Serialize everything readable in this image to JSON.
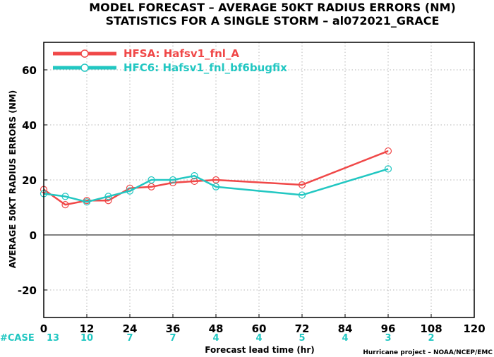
{
  "chart_data": {
    "type": "line",
    "title": "MODEL FORECAST – AVERAGE 50KT RADIUS ERRORS (NM)",
    "subtitle": "STATISTICS FOR A SINGLE STORM – al072021_GRACE",
    "xlabel": "Forecast lead time (hr)",
    "ylabel": "AVERAGE 50KT RADIUS ERRORS (NM)",
    "xlim": [
      0,
      120
    ],
    "ylim": [
      -30,
      70
    ],
    "xticks": [
      "0",
      "12",
      "24",
      "36",
      "48",
      "60",
      "72",
      "84",
      "96",
      "108",
      "120"
    ],
    "yticks": [
      "-20",
      "0",
      "20",
      "40",
      "60"
    ],
    "grid": true,
    "legend_position": "top-left",
    "series": [
      {
        "name": "HFSA: Hafsv1_fnl_A",
        "color": "#f04848",
        "points": [
          [
            0,
            16.5
          ],
          [
            6,
            11
          ],
          [
            12,
            12.5
          ],
          [
            18,
            12.5
          ],
          [
            24,
            17
          ],
          [
            30,
            17.5
          ],
          [
            36,
            19
          ],
          [
            42,
            19.5
          ],
          [
            48,
            20
          ],
          [
            72,
            18.2
          ],
          [
            96,
            30.5
          ]
        ]
      },
      {
        "name": "HFC6: Hafsv1_fnl_bf6bugfix",
        "color": "#22c7c2",
        "points": [
          [
            0,
            15
          ],
          [
            6,
            14
          ],
          [
            12,
            12
          ],
          [
            18,
            14
          ],
          [
            24,
            16
          ],
          [
            30,
            20
          ],
          [
            36,
            20
          ],
          [
            42,
            21.5
          ],
          [
            48,
            17.5
          ],
          [
            72,
            14.5
          ],
          [
            96,
            24
          ]
        ]
      }
    ],
    "case_label": "#CASE",
    "case_color": "#22c7c2",
    "cases": [
      {
        "x": 0,
        "n": "13"
      },
      {
        "x": 12,
        "n": "10"
      },
      {
        "x": 24,
        "n": "7"
      },
      {
        "x": 36,
        "n": "7"
      },
      {
        "x": 48,
        "n": "4"
      },
      {
        "x": 60,
        "n": "4"
      },
      {
        "x": 72,
        "n": "5"
      },
      {
        "x": 84,
        "n": "4"
      },
      {
        "x": 96,
        "n": "3"
      },
      {
        "x": 108,
        "n": "2"
      }
    ],
    "credit": "Hurricane project – NOAA/NCEP/EMC"
  }
}
